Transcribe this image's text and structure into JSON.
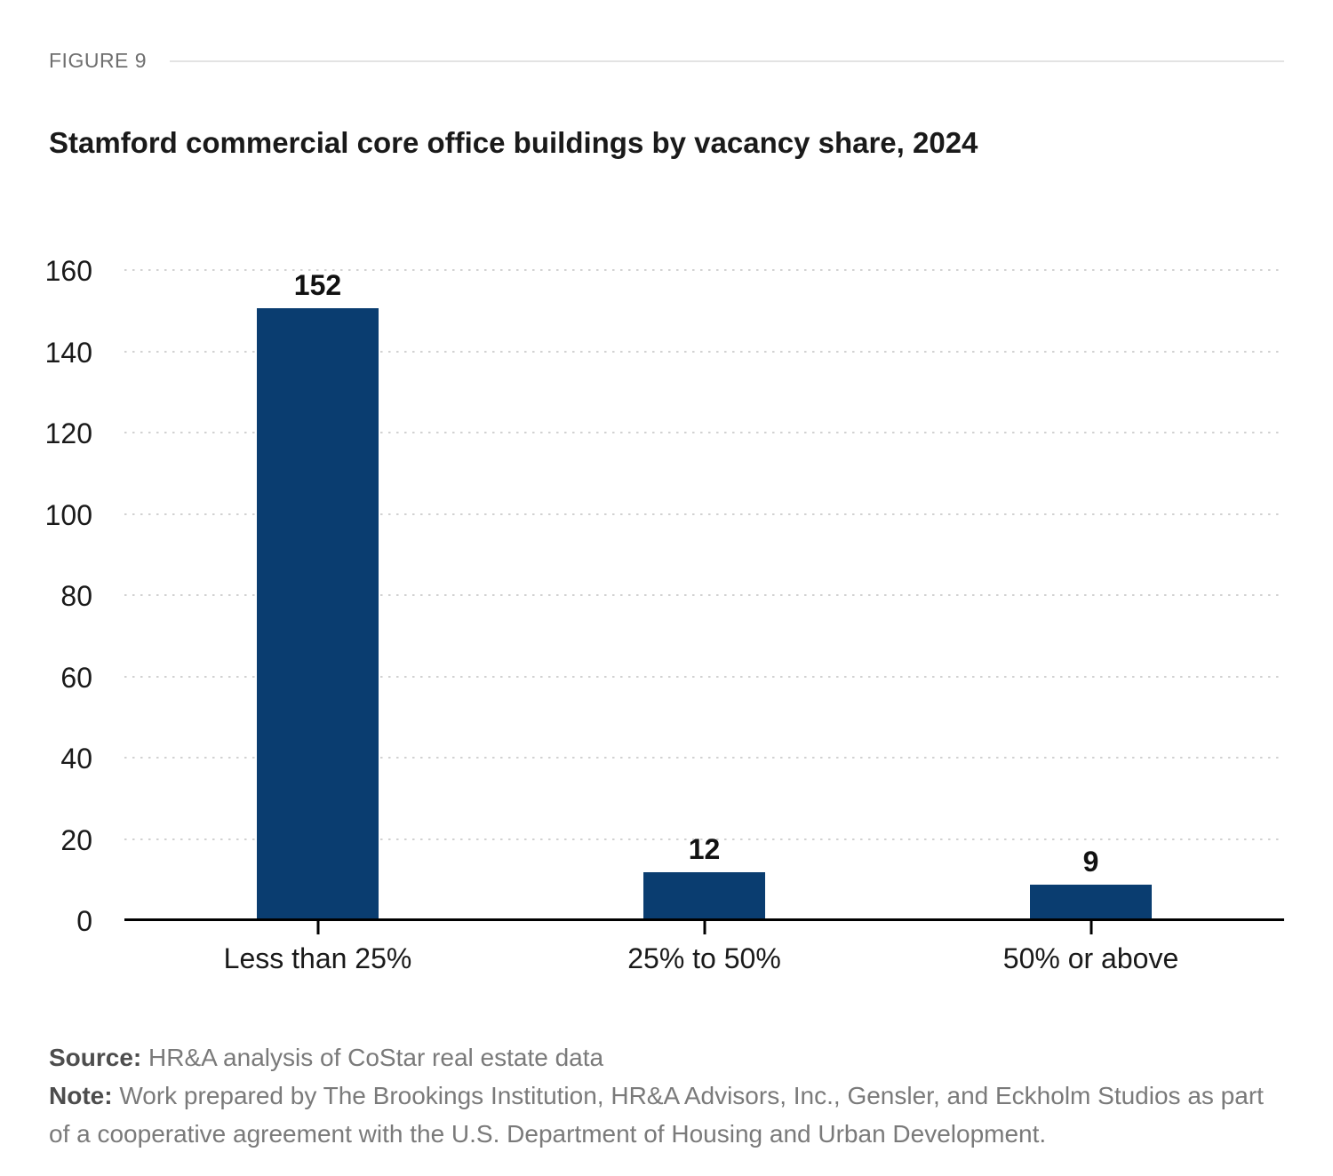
{
  "figure_label": "FIGURE 9",
  "title": "Stamford commercial core office buildings by vacancy share, 2024",
  "chart_data": {
    "type": "bar",
    "title": "Stamford commercial core office buildings by vacancy share, 2024",
    "categories": [
      "Less than 25%",
      "25% to 50%",
      "50% or above"
    ],
    "values": [
      152,
      12,
      9
    ],
    "xlabel": "",
    "ylabel": "",
    "ylim": [
      0,
      160
    ],
    "yticks": [
      0,
      20,
      40,
      60,
      80,
      100,
      120,
      140,
      160
    ],
    "grid": "horizontal dotted gridlines at each y tick, solid black baseline at 0",
    "legend": "none",
    "bar_color": "#0A3D70",
    "value_labels": [
      "152",
      "12",
      "9"
    ]
  },
  "colors": {
    "bar": "#0A3D70",
    "axis_line": "#000000",
    "gridline": "#D2D2D2",
    "text_dark": "#1A1A1A",
    "text_gray": "#7A7A7A",
    "figure_label_gray": "#6F6F6F",
    "rule": "#E3E3E3"
  },
  "source": {
    "label": "Source:",
    "text": "HR&A analysis of CoStar real estate data"
  },
  "note": {
    "label": "Note:",
    "text": "Work prepared by The Brookings Institution, HR&A Advisors, Inc., Gensler, and Eckholm Studios as part of a cooperative agreement with the U.S. Department of Housing and Urban Development."
  }
}
